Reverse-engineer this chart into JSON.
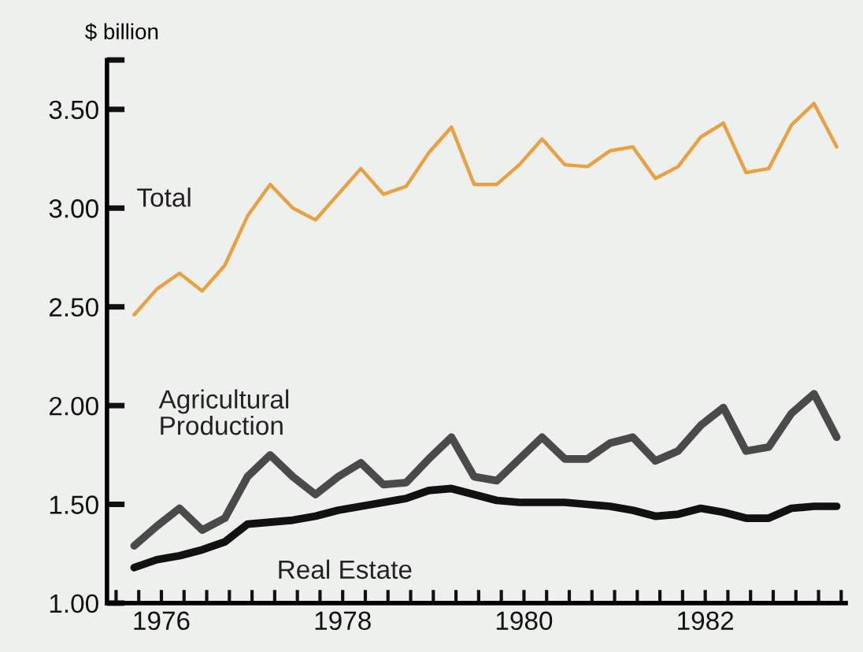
{
  "chart_data": {
    "type": "line",
    "ylabel": "$ billion",
    "x": [
      1976.2,
      1976.45,
      1976.7,
      1976.95,
      1977.2,
      1977.45,
      1977.7,
      1977.95,
      1978.2,
      1978.45,
      1978.7,
      1978.95,
      1979.2,
      1979.45,
      1979.7,
      1979.95,
      1980.2,
      1980.45,
      1980.7,
      1980.95,
      1981.2,
      1981.45,
      1981.7,
      1981.95,
      1982.2,
      1982.45,
      1982.7,
      1982.95,
      1983.2,
      1983.45,
      1983.7,
      1983.95
    ],
    "series": [
      {
        "name": "Total",
        "color": "#e8a040",
        "values": [
          2.46,
          2.59,
          2.67,
          2.58,
          2.71,
          2.96,
          3.12,
          3.0,
          2.94,
          3.07,
          3.2,
          3.07,
          3.11,
          3.28,
          3.41,
          3.12,
          3.12,
          3.22,
          3.35,
          3.22,
          3.21,
          3.29,
          3.31,
          3.15,
          3.21,
          3.36,
          3.43,
          3.18,
          3.2,
          3.42,
          3.53,
          3.31
        ]
      },
      {
        "name": "Agricultural\nProduction",
        "color": "#4a4a4a",
        "values": [
          1.29,
          1.39,
          1.48,
          1.37,
          1.43,
          1.64,
          1.75,
          1.64,
          1.55,
          1.64,
          1.71,
          1.6,
          1.61,
          1.73,
          1.84,
          1.64,
          1.62,
          1.73,
          1.84,
          1.73,
          1.73,
          1.81,
          1.84,
          1.72,
          1.77,
          1.9,
          1.99,
          1.77,
          1.79,
          1.96,
          2.06,
          1.84
        ]
      },
      {
        "name": "Real Estate",
        "color": "#111111",
        "values": [
          1.18,
          1.22,
          1.24,
          1.27,
          1.31,
          1.4,
          1.41,
          1.42,
          1.44,
          1.47,
          1.49,
          1.51,
          1.53,
          1.57,
          1.58,
          1.55,
          1.52,
          1.51,
          1.51,
          1.51,
          1.5,
          1.49,
          1.47,
          1.44,
          1.45,
          1.48,
          1.46,
          1.43,
          1.43,
          1.48,
          1.49,
          1.49
        ]
      }
    ],
    "ylim": [
      1.0,
      3.75
    ],
    "yticks": [
      {
        "value": 1.0,
        "label": "1.00"
      },
      {
        "value": 1.5,
        "label": "1.50"
      },
      {
        "value": 2.0,
        "label": "2.00"
      },
      {
        "value": 2.5,
        "label": "2.50"
      },
      {
        "value": 3.0,
        "label": "3.00"
      },
      {
        "value": 3.5,
        "label": "3.50"
      },
      {
        "value": 3.75,
        "label": null
      }
    ],
    "xlim": [
      1975.9,
      1984.05
    ],
    "xticks": [
      {
        "value": 1976.0,
        "label": null
      },
      {
        "value": 1976.25,
        "label": null
      },
      {
        "value": 1976.5,
        "label": "1976"
      },
      {
        "value": 1976.75,
        "label": null
      },
      {
        "value": 1977.0,
        "label": null
      },
      {
        "value": 1977.25,
        "label": null
      },
      {
        "value": 1977.5,
        "label": null
      },
      {
        "value": 1977.75,
        "label": null
      },
      {
        "value": 1978.0,
        "label": null
      },
      {
        "value": 1978.25,
        "label": null
      },
      {
        "value": 1978.5,
        "label": "1978"
      },
      {
        "value": 1978.75,
        "label": null
      },
      {
        "value": 1979.0,
        "label": null
      },
      {
        "value": 1979.25,
        "label": null
      },
      {
        "value": 1979.5,
        "label": null
      },
      {
        "value": 1979.75,
        "label": null
      },
      {
        "value": 1980.0,
        "label": null
      },
      {
        "value": 1980.25,
        "label": null
      },
      {
        "value": 1980.5,
        "label": "1980"
      },
      {
        "value": 1980.75,
        "label": null
      },
      {
        "value": 1981.0,
        "label": null
      },
      {
        "value": 1981.25,
        "label": null
      },
      {
        "value": 1981.5,
        "label": null
      },
      {
        "value": 1981.75,
        "label": null
      },
      {
        "value": 1982.0,
        "label": null
      },
      {
        "value": 1982.25,
        "label": null
      },
      {
        "value": 1982.5,
        "label": "1982"
      },
      {
        "value": 1982.75,
        "label": null
      },
      {
        "value": 1983.0,
        "label": null
      },
      {
        "value": 1983.25,
        "label": null
      },
      {
        "value": 1983.5,
        "label": null
      },
      {
        "value": 1983.75,
        "label": null
      },
      {
        "value": 1984.0,
        "label": null
      }
    ],
    "grid": false,
    "legend": false,
    "marker": "none",
    "line_style": "solid"
  }
}
